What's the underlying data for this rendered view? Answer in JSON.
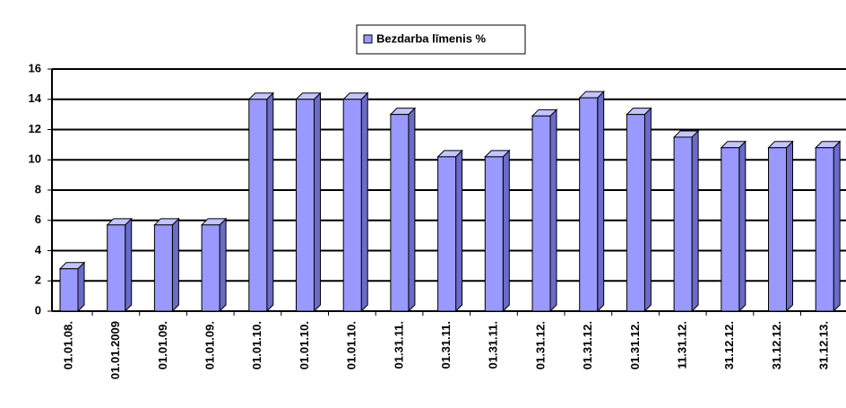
{
  "chart_data": {
    "type": "bar",
    "legend": "Bezdarba līmenis %",
    "categories": [
      "01.01.08.",
      "01.01.2009",
      "01.01.09.",
      "01.01.09.",
      "01.01.10.",
      "01.01.10.",
      "01.01.10.",
      "01.31.11.",
      "01.31.11.",
      "01.31.11.",
      "01.31.12.",
      "01.31.12.",
      "01.31.12.",
      "11.31.12.",
      "31.12.12.",
      "31.12.12.",
      "31.12.13."
    ],
    "values": [
      2.8,
      5.7,
      5.7,
      5.7,
      14.0,
      14.0,
      14.0,
      13.0,
      10.2,
      10.2,
      12.9,
      14.1,
      13.0,
      11.5,
      10.8,
      10.8,
      10.8
    ],
    "color": "#9999ff",
    "ylim": [
      0,
      16
    ],
    "yticks": [
      0,
      2,
      4,
      6,
      8,
      10,
      12,
      14,
      16
    ],
    "grid": true
  }
}
